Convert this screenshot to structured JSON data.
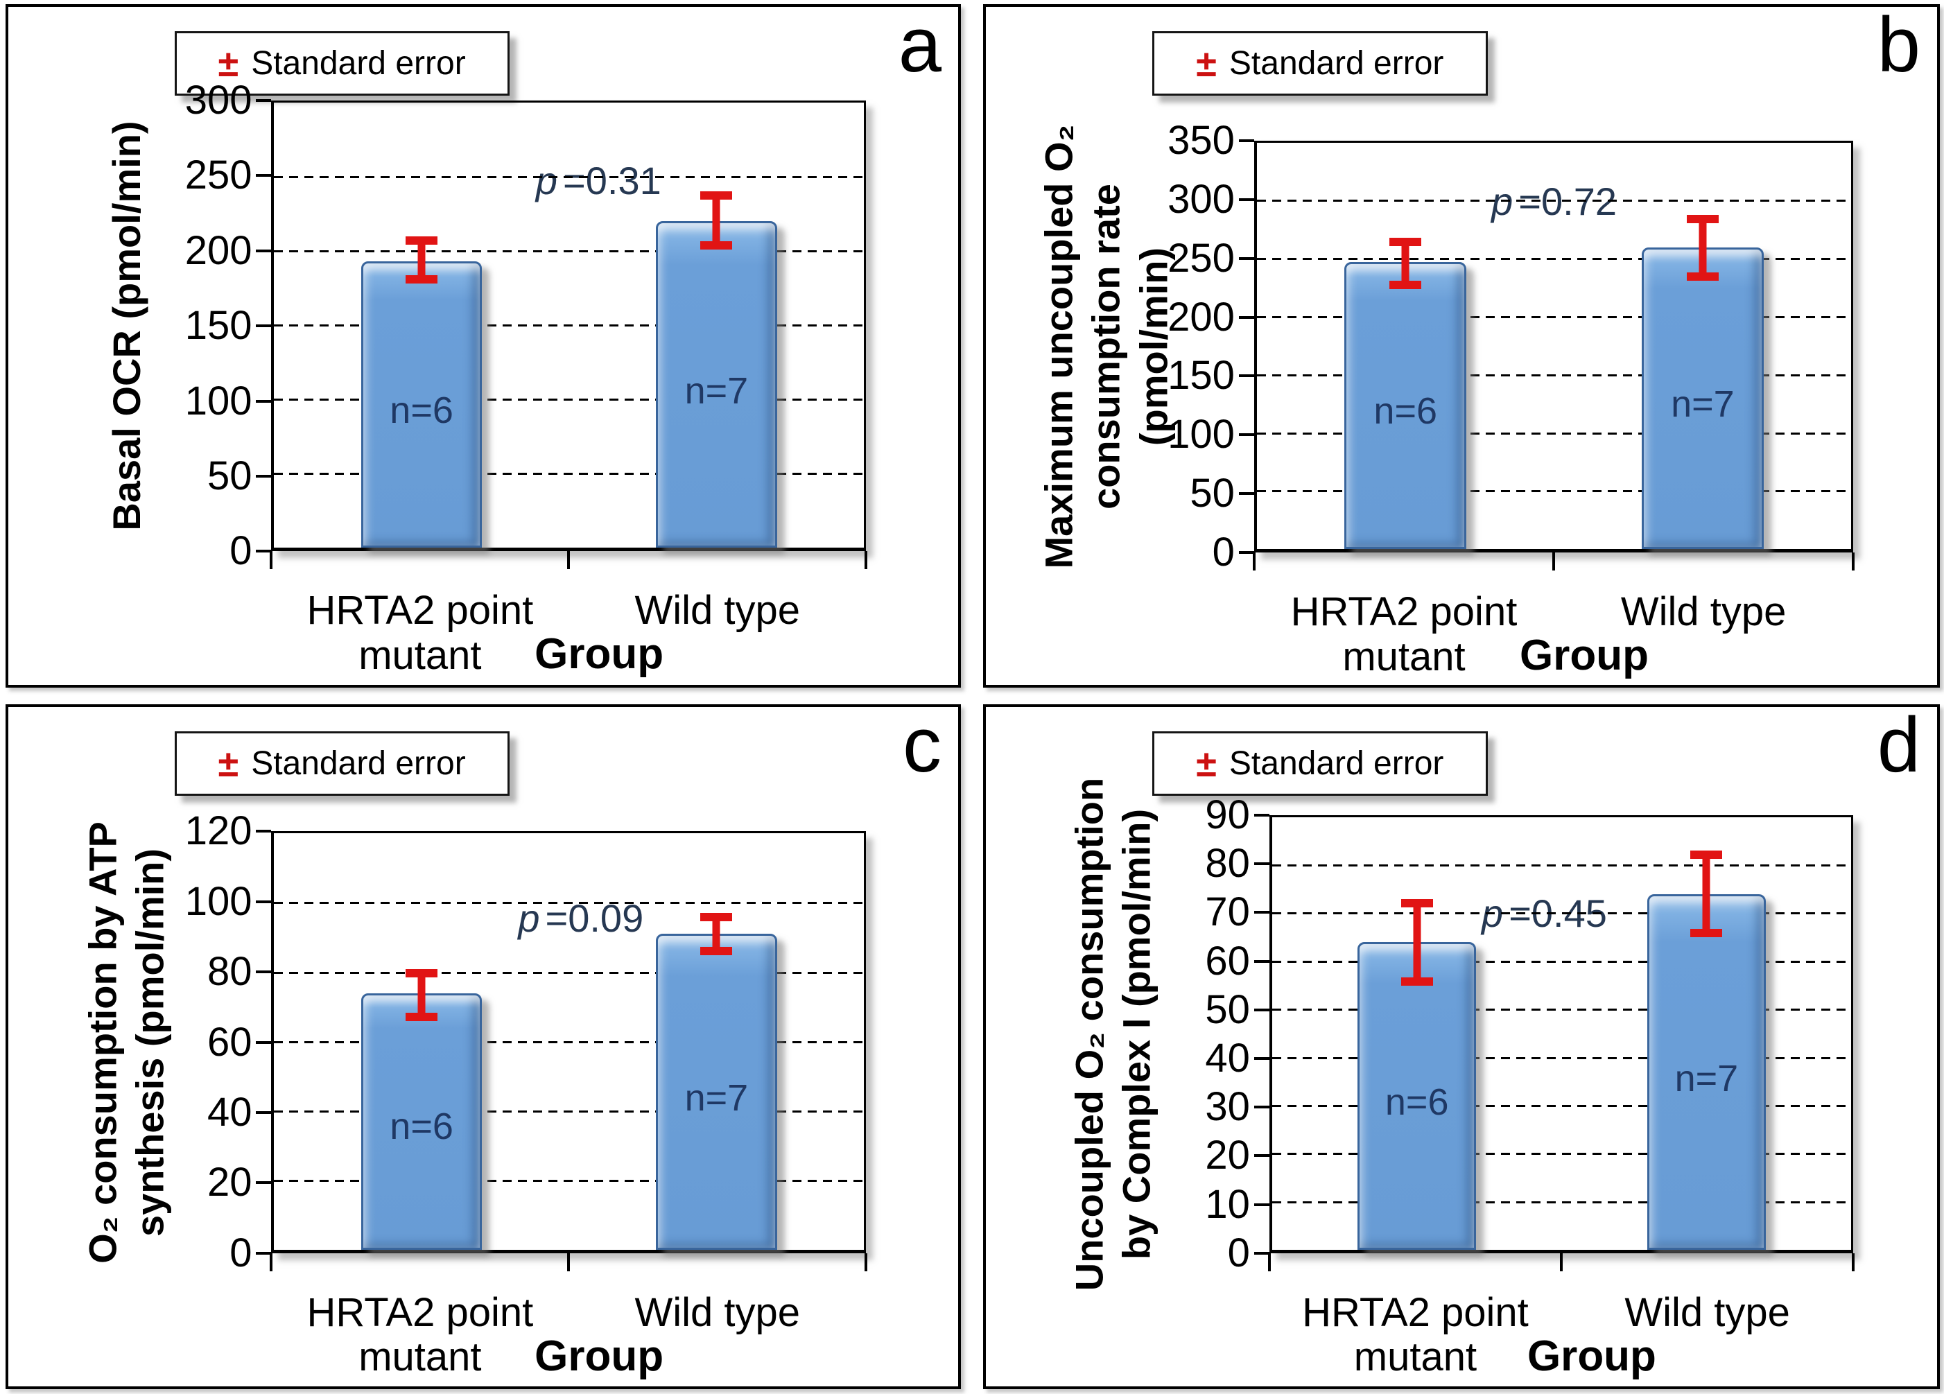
{
  "colors": {
    "bar_fill": "#6B9FD8",
    "bar_border": "#39659C",
    "error_bar": "#E11414",
    "n_label": "#1F3864",
    "p_label": "#263852",
    "axis_and_grid": "#000000",
    "legend_plus_minus": "#CC1111",
    "panel_border": "#000000",
    "background": "#FFFFFF"
  },
  "chart_data": [
    {
      "letter": "a",
      "type": "bar",
      "legend": {
        "pm": "±",
        "label": "Standard error"
      },
      "ylabel": "Basal OCR (pmol/min)",
      "ylabel_lines": [
        "Basal OCR (pmol/min)"
      ],
      "xlabel": "Group",
      "categories": [
        "HRTA2 point mutant",
        "Wild type"
      ],
      "categories_lines": [
        [
          "HRTA2 point",
          "mutant"
        ],
        [
          "Wild type"
        ]
      ],
      "ylim": [
        0,
        300
      ],
      "ytick_step": 50,
      "yticks": [
        0,
        50,
        100,
        150,
        200,
        250,
        300
      ],
      "grid": "horizontal-dashed",
      "legend_position": "top-inside",
      "bars": [
        {
          "category": "HRTA2 point mutant",
          "value": 193,
          "err_low": 178,
          "err_high": 210,
          "n_label": "n=6"
        },
        {
          "category": "Wild type",
          "value": 220,
          "err_low": 201,
          "err_high": 240,
          "n_label": "n=7"
        }
      ],
      "p_value": {
        "sym": "p",
        "rest": "=0.31"
      }
    },
    {
      "letter": "b",
      "type": "bar",
      "legend": {
        "pm": "±",
        "label": "Standard error"
      },
      "ylabel": "Maximum uncoupled O₂ consumption rate (pmol/min)",
      "ylabel_lines": [
        "Maximum uncoupled O₂",
        "consumption rate",
        "(pmol/min)"
      ],
      "xlabel": "Group",
      "categories": [
        "HRTA2 point mutant",
        "Wild type"
      ],
      "categories_lines": [
        [
          "HRTA2 point",
          "mutant"
        ],
        [
          "Wild type"
        ]
      ],
      "ylim": [
        0,
        350
      ],
      "ytick_step": 50,
      "yticks": [
        0,
        50,
        100,
        150,
        200,
        250,
        300,
        350
      ],
      "grid": "horizontal-dashed",
      "legend_position": "top-inside",
      "bars": [
        {
          "category": "HRTA2 point mutant",
          "value": 247,
          "err_low": 224,
          "err_high": 268,
          "n_label": "n=6"
        },
        {
          "category": "Wild type",
          "value": 260,
          "err_low": 231,
          "err_high": 288,
          "n_label": "n=7"
        }
      ],
      "p_value": {
        "sym": "p",
        "rest": "=0.72"
      }
    },
    {
      "letter": "c",
      "type": "bar",
      "legend": {
        "pm": "±",
        "label": "Standard error"
      },
      "ylabel": "O₂ consumption by ATP synthesis (pmol/min)",
      "ylabel_lines": [
        "O₂ consumption by ATP",
        "synthesis (pmol/min)"
      ],
      "xlabel": "Group",
      "categories": [
        "HRTA2 point mutant",
        "Wild type"
      ],
      "categories_lines": [
        [
          "HRTA2 point",
          "mutant"
        ],
        [
          "Wild type"
        ]
      ],
      "ylim": [
        0,
        120
      ],
      "ytick_step": 20,
      "yticks": [
        0,
        20,
        40,
        60,
        80,
        100,
        120
      ],
      "grid": "horizontal-dashed",
      "legend_position": "top-inside",
      "bars": [
        {
          "category": "HRTA2 point mutant",
          "value": 74,
          "err_low": 66,
          "err_high": 81,
          "n_label": "n=6"
        },
        {
          "category": "Wild type",
          "value": 91,
          "err_low": 85,
          "err_high": 97,
          "n_label": "n=7"
        }
      ],
      "p_value": {
        "sym": "p",
        "rest": "=0.09"
      }
    },
    {
      "letter": "d",
      "type": "bar",
      "legend": {
        "pm": "±",
        "label": "Standard error"
      },
      "ylabel": "Uncoupled O₂ consumption by Complex I (pmol/min)",
      "ylabel_lines": [
        "Uncoupled O₂ consumption",
        "by Complex I (pmol/min)"
      ],
      "xlabel": "Group",
      "categories": [
        "HRTA2 point mutant",
        "Wild type"
      ],
      "categories_lines": [
        [
          "HRTA2 point",
          "mutant"
        ],
        [
          "Wild type"
        ]
      ],
      "ylim": [
        0,
        90
      ],
      "ytick_step": 10,
      "yticks": [
        0,
        10,
        20,
        30,
        40,
        50,
        60,
        70,
        80,
        90
      ],
      "grid": "horizontal-dashed",
      "legend_position": "top-inside",
      "bars": [
        {
          "category": "HRTA2 point mutant",
          "value": 64,
          "err_low": 55,
          "err_high": 73,
          "n_label": "n=6"
        },
        {
          "category": "Wild type",
          "value": 74,
          "err_low": 65,
          "err_high": 83,
          "n_label": "n=7"
        }
      ],
      "p_value": {
        "sym": "p",
        "rest": "=0.45"
      }
    }
  ]
}
